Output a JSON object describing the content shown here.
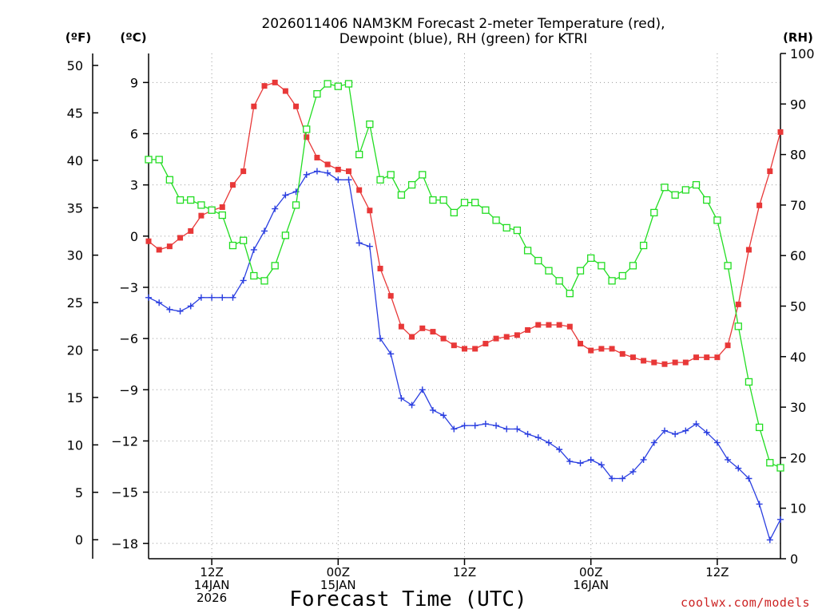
{
  "chart_data": {
    "type": "line",
    "title_line1": "2026011406 NAM3KM Forecast 2-meter Temperature (red),",
    "title_line2": "Dewpoint (blue), RH (green) for KTRI",
    "xlabel": "Forecast Time (UTC)",
    "left_outer_unit": "(ºF)",
    "left_inner_unit": "(ºC)",
    "right_unit": "(RH)",
    "credit": "coolwx.com/models",
    "x_range_hours": [
      0,
      60
    ],
    "celsius_range": [
      -18.9,
      10.7
    ],
    "fahrenheit_range": [
      -2,
      51.26
    ],
    "rh_range": [
      0,
      100
    ],
    "fahrenheit_ticks": [
      0,
      5,
      10,
      15,
      20,
      25,
      30,
      35,
      40,
      45,
      50
    ],
    "fahrenheit_tick_labels": [
      "0",
      "5",
      "10",
      "15",
      "20",
      "25",
      "30",
      "35",
      "40",
      "45",
      "50"
    ],
    "celsius_ticks": [
      -18,
      -15,
      -12,
      -9,
      -6,
      -3,
      0,
      3,
      6,
      9
    ],
    "celsius_tick_labels": [
      "−18",
      "−15",
      "−12",
      "−9",
      "−6",
      "−3",
      "0",
      "3",
      "6",
      "9"
    ],
    "rh_ticks": [
      0,
      10,
      20,
      30,
      40,
      50,
      60,
      70,
      80,
      90,
      100
    ],
    "rh_tick_labels": [
      "0",
      "10",
      "20",
      "30",
      "40",
      "50",
      "60",
      "70",
      "80",
      "90",
      "100"
    ],
    "x_ticks": [
      {
        "hour": 6,
        "lines": [
          "12Z",
          "14JAN",
          "2026"
        ]
      },
      {
        "hour": 18,
        "lines": [
          "00Z",
          "15JAN"
        ]
      },
      {
        "hour": 30,
        "lines": [
          "12Z"
        ]
      },
      {
        "hour": 42,
        "lines": [
          "00Z",
          "16JAN"
        ]
      },
      {
        "hour": 54,
        "lines": [
          "12Z"
        ]
      }
    ],
    "series": [
      {
        "name": "Temperature",
        "color": "#e83838",
        "marker": "filled-square",
        "units": "C",
        "values": [
          -0.3,
          -0.8,
          -0.6,
          -0.1,
          0.3,
          1.2,
          1.5,
          1.7,
          3.0,
          3.8,
          7.6,
          8.8,
          9.0,
          8.5,
          7.6,
          5.8,
          4.6,
          4.2,
          3.9,
          3.8,
          2.7,
          1.5,
          -1.9,
          -3.5,
          -5.3,
          -5.9,
          -5.4,
          -5.6,
          -6.0,
          -6.4,
          -6.6,
          -6.6,
          -6.3,
          -6.0,
          -5.9,
          -5.8,
          -5.5,
          -5.2,
          -5.2,
          -5.2,
          -5.3,
          -6.3,
          -6.7,
          -6.6,
          -6.6,
          -6.9,
          -7.1,
          -7.3,
          -7.4,
          -7.5,
          -7.4,
          -7.4,
          -7.1,
          -7.1,
          -7.1,
          -6.4,
          -4.0,
          -0.8,
          1.8,
          3.8,
          6.1
        ]
      },
      {
        "name": "Dewpoint",
        "color": "#2a3ee0",
        "marker": "plus",
        "units": "C",
        "values": [
          -3.6,
          -3.9,
          -4.3,
          -4.4,
          -4.1,
          -3.6,
          -3.6,
          -3.6,
          -3.6,
          -2.6,
          -0.8,
          0.3,
          1.6,
          2.4,
          2.6,
          3.6,
          3.8,
          3.7,
          3.3,
          3.3,
          -0.4,
          -0.6,
          -6.0,
          -6.9,
          -9.5,
          -9.9,
          -9.0,
          -10.2,
          -10.5,
          -11.3,
          -11.1,
          -11.1,
          -11.0,
          -11.1,
          -11.3,
          -11.3,
          -11.6,
          -11.8,
          -12.1,
          -12.5,
          -13.2,
          -13.3,
          -13.1,
          -13.4,
          -14.2,
          -14.2,
          -13.8,
          -13.1,
          -12.1,
          -11.4,
          -11.6,
          -11.4,
          -11.0,
          -11.5,
          -12.1,
          -13.1,
          -13.6,
          -14.2,
          -15.7,
          -17.8,
          -16.6
        ]
      },
      {
        "name": "RH",
        "color": "#22dd22",
        "marker": "open-square",
        "units": "%",
        "values": [
          79,
          79,
          75,
          71,
          71,
          70,
          69,
          68,
          62,
          63,
          56,
          55,
          58,
          64,
          70,
          85,
          92,
          94,
          93.5,
          94,
          80,
          86,
          75,
          76,
          72,
          74,
          76,
          71,
          71,
          68.5,
          70.5,
          70.5,
          69,
          67,
          65.5,
          65,
          61,
          59,
          57,
          55,
          52.5,
          57,
          59.5,
          58,
          55,
          56,
          58,
          62,
          68.5,
          73.5,
          72,
          73,
          74,
          71,
          67,
          58,
          46,
          35,
          26,
          19,
          18
        ]
      }
    ]
  }
}
